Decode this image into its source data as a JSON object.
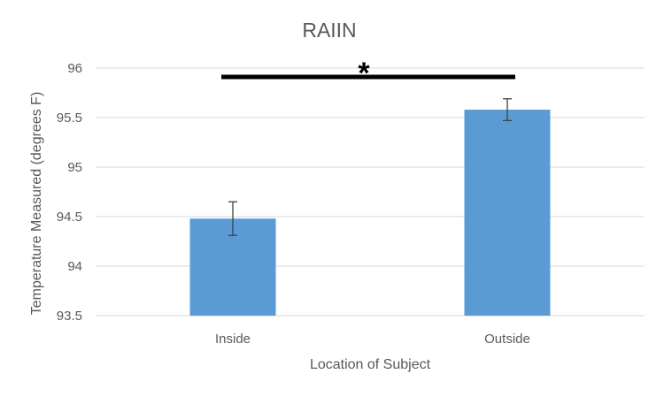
{
  "chart_data": {
    "type": "bar",
    "title": "RAIIN",
    "xlabel": "Location of Subject",
    "ylabel": "Temperature Measured (degrees F)",
    "categories": [
      "Inside",
      "Outside"
    ],
    "values": [
      94.48,
      95.58
    ],
    "error_bars": [
      0.17,
      0.11
    ],
    "ylim": [
      93.5,
      96
    ],
    "yticks": [
      93.5,
      94,
      94.5,
      95,
      95.5,
      96
    ],
    "ytick_labels": [
      "93.5",
      "94",
      "94.5",
      "95",
      "95.5",
      "96"
    ],
    "grid": true,
    "legend": "none",
    "significance": {
      "from": "Inside",
      "to": "Outside",
      "marker": "*"
    },
    "colors": {
      "bar": "#5b9bd5",
      "gridline": "#d9d9d9",
      "text": "#595959",
      "error_bar": "#404040",
      "significance": "#000000"
    }
  }
}
